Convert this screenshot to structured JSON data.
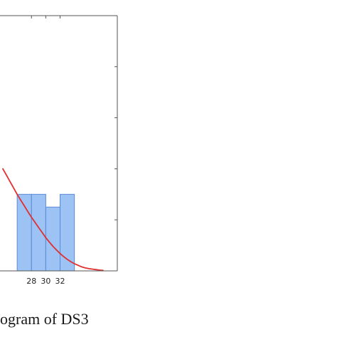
{
  "caption": "ogram of DS3",
  "chart_data": {
    "type": "bar",
    "title": "",
    "xlabel": "",
    "ylabel": "",
    "bars": [
      {
        "x_start": 26,
        "x_end": 28,
        "value": 3
      },
      {
        "x_start": 28,
        "x_end": 30,
        "value": 3
      },
      {
        "x_start": 30,
        "x_end": 32,
        "value": 2.5
      },
      {
        "x_start": 32,
        "x_end": 34,
        "value": 3
      }
    ],
    "x_tick_labels": [
      "28",
      "30",
      "32"
    ],
    "x_ticks": [
      28,
      30,
      32
    ],
    "xlim": [
      23.6,
      40
    ],
    "ylim": [
      0,
      10
    ],
    "y_ticks": [
      2,
      4,
      6,
      8
    ],
    "grid": false,
    "bar_color": "#9dc3f5",
    "bar_edge_color": "#5a8ad6",
    "curve": {
      "name": "",
      "color": "#e03030",
      "x": [
        24,
        24.5,
        25,
        25.5,
        26,
        26.5,
        27,
        27.5,
        28,
        28.5,
        29,
        29.5,
        30,
        30.5,
        31,
        31.5,
        32,
        32.5,
        33,
        33.5,
        34,
        34.5,
        35,
        35.5,
        36,
        36.5,
        37,
        37.5,
        38
      ],
      "y": [
        4.0,
        3.75,
        3.5,
        3.25,
        3.0,
        2.77,
        2.55,
        2.32,
        2.1,
        1.9,
        1.7,
        1.5,
        1.3,
        1.13,
        0.96,
        0.82,
        0.68,
        0.56,
        0.45,
        0.36,
        0.28,
        0.22,
        0.16,
        0.12,
        0.09,
        0.07,
        0.05,
        0.03,
        0.02
      ]
    }
  }
}
